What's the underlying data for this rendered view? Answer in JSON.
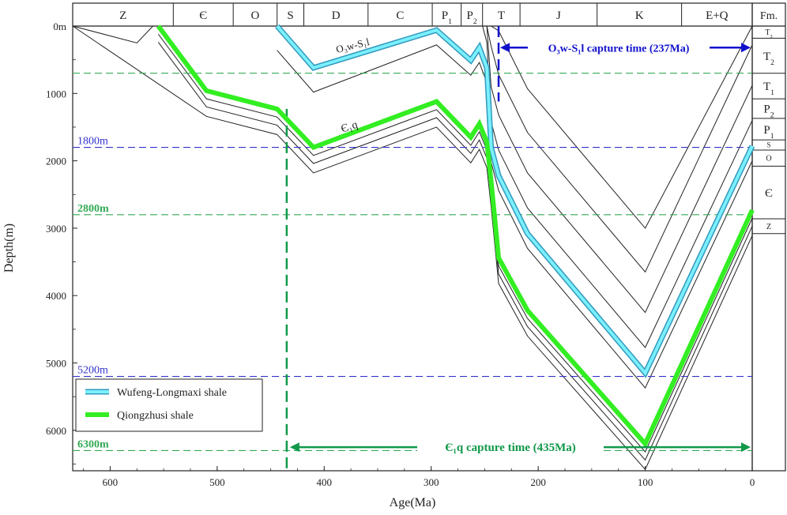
{
  "chart_data": {
    "type": "line",
    "xlabel": "Age(Ma)",
    "ylabel": "Depth(m)",
    "xlim": [
      635,
      0
    ],
    "ylim": [
      0,
      6600
    ],
    "x_ticks": [
      600,
      500,
      400,
      300,
      200,
      100,
      0
    ],
    "y_ticks": [
      {
        "value": 0,
        "label": "0m"
      },
      {
        "value": 1000,
        "label": "1000"
      },
      {
        "value": 2000,
        "label": "2000"
      },
      {
        "value": 3000,
        "label": "3000"
      },
      {
        "value": 4000,
        "label": "4000"
      },
      {
        "value": 5000,
        "label": "5000"
      },
      {
        "value": 6000,
        "label": "6000"
      }
    ],
    "periods": [
      {
        "label": "Z",
        "start": 635,
        "end": 541
      },
      {
        "label": "Є",
        "start": 541,
        "end": 485
      },
      {
        "label": "O",
        "start": 485,
        "end": 444
      },
      {
        "label": "S",
        "start": 444,
        "end": 419
      },
      {
        "label": "D",
        "start": 419,
        "end": 359
      },
      {
        "label": "C",
        "start": 359,
        "end": 299
      },
      {
        "label": "P",
        "sub": "1",
        "start": 299,
        "end": 272
      },
      {
        "label": "P",
        "sub": "2",
        "start": 272,
        "end": 252
      },
      {
        "label": "T",
        "start": 252,
        "end": 217
      },
      {
        "label": "J",
        "start": 217,
        "end": 145
      },
      {
        "label": "K",
        "start": 145,
        "end": 66
      },
      {
        "label": "E+Q",
        "start": 66,
        "end": 0
      }
    ],
    "formation_header": "Fm.",
    "formations": [
      {
        "label": "T",
        "sub": "3",
        "top": 0,
        "bottom": 180
      },
      {
        "label": "T",
        "sub": "2",
        "top": 180,
        "bottom": 700
      },
      {
        "label": "T",
        "sub": "1",
        "top": 700,
        "bottom": 1080
      },
      {
        "label": "P",
        "sub": "2",
        "top": 1080,
        "bottom": 1370
      },
      {
        "label": "P",
        "sub": "1",
        "top": 1370,
        "bottom": 1690
      },
      {
        "label": "S",
        "sub": "",
        "top": 1690,
        "bottom": 1840
      },
      {
        "label": "O",
        "sub": "",
        "top": 1840,
        "bottom": 2080
      },
      {
        "label": "Є",
        "sub": "",
        "top": 2080,
        "bottom": 2860
      },
      {
        "label": "Z",
        "sub": "",
        "top": 2860,
        "bottom": 3080
      }
    ],
    "series": [
      {
        "name": "Wufeng-Longmaxi shale",
        "color": "#44ddee",
        "x": [
          444,
          410,
          295,
          263,
          255,
          248,
          244,
          237,
          210,
          100,
          0
        ],
        "y": [
          0,
          620,
          60,
          510,
          320,
          620,
          1800,
          2220,
          3080,
          5150,
          1780
        ]
      },
      {
        "name": "Qiongzhusi shale",
        "color": "#33ee22",
        "x": [
          555,
          510,
          444,
          410,
          295,
          263,
          255,
          248,
          244,
          237,
          210,
          100,
          0
        ],
        "y": [
          0,
          960,
          1230,
          1800,
          1120,
          1650,
          1450,
          1720,
          2300,
          3440,
          4220,
          6200,
          2730
        ]
      }
    ],
    "reference_lines": [
      {
        "depth": 700,
        "color": "#33aa55"
      },
      {
        "depth": 1800,
        "label": "1800m",
        "color": "#3333cc"
      },
      {
        "depth": 2800,
        "label": "2800m",
        "color": "#33aa55"
      },
      {
        "depth": 5200,
        "label": "5200m",
        "color": "#3333cc"
      },
      {
        "depth": 6300,
        "label": "6300m",
        "color": "#33aa55"
      }
    ],
    "annotations": [
      {
        "text": "O₃w-S₁l capture time (237Ma)",
        "color": "#1111cc",
        "age": 237
      },
      {
        "text": "Є₁q capture time (435Ma)",
        "color": "#11994a",
        "age": 435
      }
    ],
    "labels": {
      "upper": "O₃w-S₁l",
      "lower": "Є₁q"
    },
    "legend": {
      "placement": "bottom-left",
      "items": [
        "Wufeng-Longmaxi shale",
        "Qiongzhusi shale"
      ]
    }
  }
}
